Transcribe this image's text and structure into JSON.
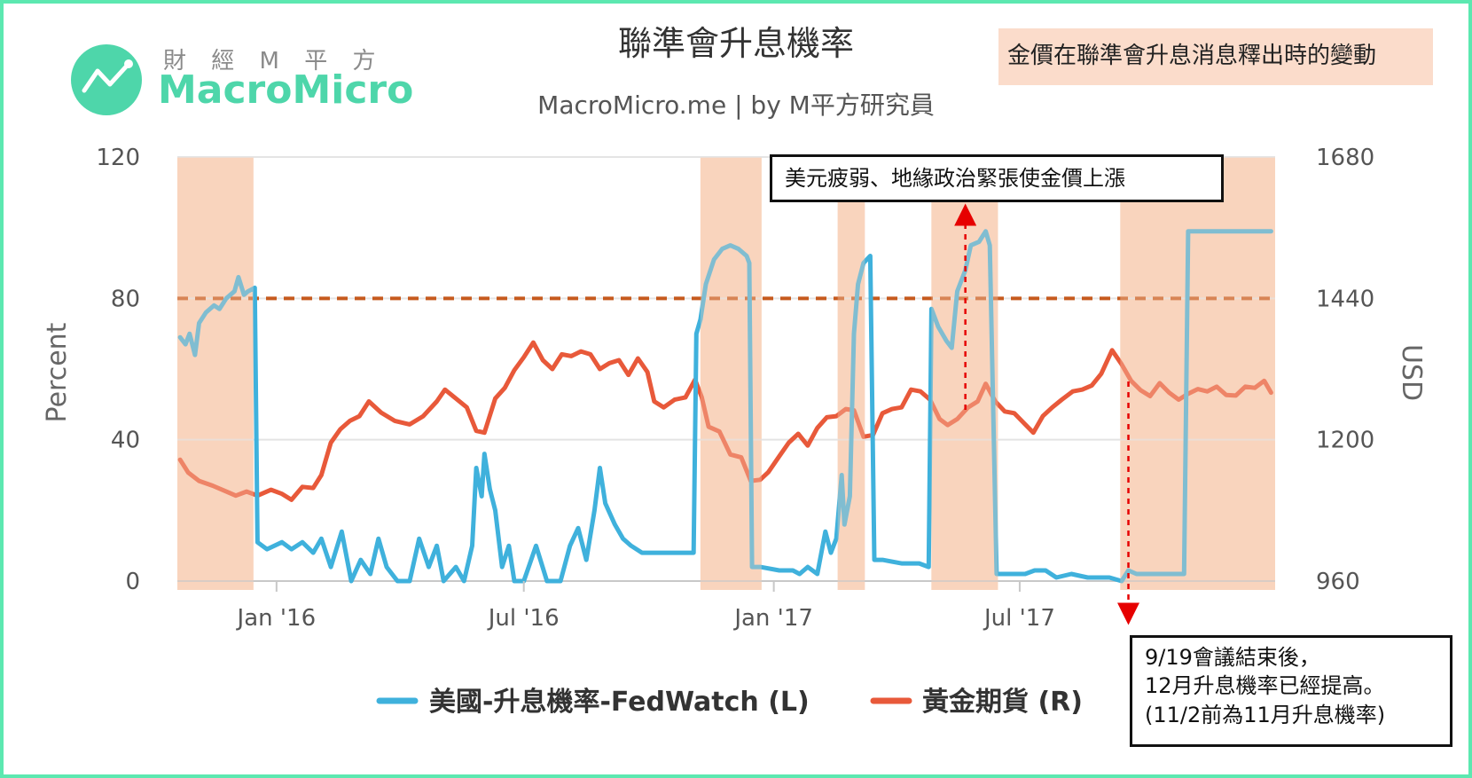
{
  "brand": {
    "name_cn": "財 經 M 平 方",
    "name_en": "MacroMicro",
    "logo_icon": "trend-chart-icon",
    "accent": "#4ed6aa"
  },
  "note_label": "金價在聯準會升息消息釋出時的變動",
  "annotations": {
    "top": "美元疲弱、地緣政治緊張使金價上漲",
    "bottom": [
      "9/19會議結束後，",
      "12月升息機率已經提高。",
      "(11/2前為11月升息機率)"
    ]
  },
  "colors": {
    "fedwatch": "#3fb1dc",
    "gold": "#e8593a",
    "highlight": "#f9d5be",
    "threshold": "#c65a1e",
    "arrow": "#e60000"
  },
  "chart_data": {
    "type": "line",
    "title": "聯準會升息機率",
    "subtitle": "MacroMicro.me | by M平方研究員",
    "xlabel": "",
    "ylabel_left": "Percent",
    "ylabel_right": "USD",
    "ylim_left": [
      0,
      120
    ],
    "ylim_right": [
      960,
      1680
    ],
    "yticks_left": [
      "0",
      "40",
      "80",
      "120"
    ],
    "yticks_right": [
      "960",
      "1200",
      "1440",
      "1680"
    ],
    "xticks": [
      {
        "label": "Jan '16",
        "date": "2016-01-01"
      },
      {
        "label": "Jul '16",
        "date": "2016-07-01"
      },
      {
        "label": "Jan '17",
        "date": "2017-01-01"
      },
      {
        "label": "Jul '17",
        "date": "2017-07-01"
      }
    ],
    "xrange": [
      "2015-10-20",
      "2018-01-05"
    ],
    "threshold_line": {
      "axis": "left",
      "value": 80,
      "style": "dashed"
    },
    "highlight_periods": [
      [
        "2015-10-20",
        "2015-12-15"
      ],
      [
        "2016-11-08",
        "2016-12-23"
      ],
      [
        "2017-02-17",
        "2017-03-09"
      ],
      [
        "2017-04-27",
        "2017-06-15"
      ],
      [
        "2017-09-13",
        "2018-01-05"
      ]
    ],
    "series": [
      {
        "name": "美國-升息機率-FedWatch (L)",
        "axis": "left",
        "points": [
          [
            "2015-10-22",
            69
          ],
          [
            "2015-10-26",
            67
          ],
          [
            "2015-10-29",
            70
          ],
          [
            "2015-11-02",
            64
          ],
          [
            "2015-11-05",
            73
          ],
          [
            "2015-11-10",
            76
          ],
          [
            "2015-11-16",
            78
          ],
          [
            "2015-11-20",
            77
          ],
          [
            "2015-11-25",
            80
          ],
          [
            "2015-12-01",
            82
          ],
          [
            "2015-12-04",
            86
          ],
          [
            "2015-12-08",
            81
          ],
          [
            "2015-12-11",
            82
          ],
          [
            "2015-12-16",
            83
          ],
          [
            "2015-12-18",
            11
          ],
          [
            "2015-12-25",
            9
          ],
          [
            "2016-01-05",
            11
          ],
          [
            "2016-01-12",
            9
          ],
          [
            "2016-01-20",
            11
          ],
          [
            "2016-01-28",
            8
          ],
          [
            "2016-02-03",
            12
          ],
          [
            "2016-02-10",
            4
          ],
          [
            "2016-02-18",
            14
          ],
          [
            "2016-02-25",
            0
          ],
          [
            "2016-03-03",
            6
          ],
          [
            "2016-03-10",
            2
          ],
          [
            "2016-03-16",
            12
          ],
          [
            "2016-03-22",
            4
          ],
          [
            "2016-03-30",
            0
          ],
          [
            "2016-04-08",
            0
          ],
          [
            "2016-04-15",
            12
          ],
          [
            "2016-04-22",
            4
          ],
          [
            "2016-04-28",
            10
          ],
          [
            "2016-05-03",
            0
          ],
          [
            "2016-05-12",
            4
          ],
          [
            "2016-05-18",
            0
          ],
          [
            "2016-05-24",
            10
          ],
          [
            "2016-05-27",
            32
          ],
          [
            "2016-05-31",
            24
          ],
          [
            "2016-06-02",
            36
          ],
          [
            "2016-06-06",
            26
          ],
          [
            "2016-06-10",
            20
          ],
          [
            "2016-06-15",
            4
          ],
          [
            "2016-06-20",
            10
          ],
          [
            "2016-06-24",
            0
          ],
          [
            "2016-07-01",
            0
          ],
          [
            "2016-07-10",
            10
          ],
          [
            "2016-07-18",
            0
          ],
          [
            "2016-07-28",
            0
          ],
          [
            "2016-08-04",
            10
          ],
          [
            "2016-08-10",
            15
          ],
          [
            "2016-08-16",
            6
          ],
          [
            "2016-08-22",
            20
          ],
          [
            "2016-08-26",
            32
          ],
          [
            "2016-08-30",
            22
          ],
          [
            "2016-09-06",
            16
          ],
          [
            "2016-09-12",
            12
          ],
          [
            "2016-09-18",
            10
          ],
          [
            "2016-09-26",
            8
          ],
          [
            "2016-10-03",
            8
          ],
          [
            "2016-10-12",
            8
          ],
          [
            "2016-10-20",
            8
          ],
          [
            "2016-10-27",
            8
          ],
          [
            "2016-11-03",
            8
          ],
          [
            "2016-11-05",
            70
          ],
          [
            "2016-11-08",
            74
          ],
          [
            "2016-11-12",
            84
          ],
          [
            "2016-11-18",
            91
          ],
          [
            "2016-11-24",
            94
          ],
          [
            "2016-11-30",
            95
          ],
          [
            "2016-12-06",
            94
          ],
          [
            "2016-12-12",
            92
          ],
          [
            "2016-12-14",
            90
          ],
          [
            "2016-12-16",
            4
          ],
          [
            "2016-12-22",
            4
          ],
          [
            "2017-01-05",
            3
          ],
          [
            "2017-01-15",
            3
          ],
          [
            "2017-01-20",
            2
          ],
          [
            "2017-01-26",
            4
          ],
          [
            "2017-02-02",
            2
          ],
          [
            "2017-02-08",
            14
          ],
          [
            "2017-02-12",
            8
          ],
          [
            "2017-02-16",
            12
          ],
          [
            "2017-02-20",
            30
          ],
          [
            "2017-02-22",
            16
          ],
          [
            "2017-02-26",
            24
          ],
          [
            "2017-03-01",
            70
          ],
          [
            "2017-03-04",
            84
          ],
          [
            "2017-03-08",
            90
          ],
          [
            "2017-03-13",
            92
          ],
          [
            "2017-03-16",
            6
          ],
          [
            "2017-03-22",
            6
          ],
          [
            "2017-04-05",
            5
          ],
          [
            "2017-04-18",
            5
          ],
          [
            "2017-04-25",
            4
          ],
          [
            "2017-04-27",
            77
          ],
          [
            "2017-05-02",
            72
          ],
          [
            "2017-05-08",
            68
          ],
          [
            "2017-05-12",
            66
          ],
          [
            "2017-05-16",
            82
          ],
          [
            "2017-05-22",
            88
          ],
          [
            "2017-05-26",
            95
          ],
          [
            "2017-06-01",
            96
          ],
          [
            "2017-06-06",
            99
          ],
          [
            "2017-06-09",
            95
          ],
          [
            "2017-06-14",
            2
          ],
          [
            "2017-06-22",
            2
          ],
          [
            "2017-07-05",
            2
          ],
          [
            "2017-07-12",
            3
          ],
          [
            "2017-07-20",
            3
          ],
          [
            "2017-07-28",
            1
          ],
          [
            "2017-08-08",
            2
          ],
          [
            "2017-08-20",
            1
          ],
          [
            "2017-09-05",
            1
          ],
          [
            "2017-09-14",
            0
          ],
          [
            "2017-09-19",
            3
          ],
          [
            "2017-09-25",
            2
          ],
          [
            "2017-10-10",
            2
          ],
          [
            "2017-10-30",
            2
          ],
          [
            "2017-11-02",
            99
          ],
          [
            "2017-12-15",
            99
          ],
          [
            "2018-01-02",
            99
          ]
        ]
      },
      {
        "name": "黃金期貨 (R)",
        "axis": "right",
        "points": [
          [
            "2015-10-22",
            1166
          ],
          [
            "2015-10-28",
            1144
          ],
          [
            "2015-11-05",
            1130
          ],
          [
            "2015-11-15",
            1122
          ],
          [
            "2015-11-25",
            1112
          ],
          [
            "2015-12-02",
            1105
          ],
          [
            "2015-12-10",
            1112
          ],
          [
            "2015-12-18",
            1105
          ],
          [
            "2015-12-28",
            1115
          ],
          [
            "2016-01-05",
            1108
          ],
          [
            "2016-01-12",
            1098
          ],
          [
            "2016-01-20",
            1120
          ],
          [
            "2016-01-28",
            1118
          ],
          [
            "2016-02-03",
            1140
          ],
          [
            "2016-02-10",
            1195
          ],
          [
            "2016-02-17",
            1218
          ],
          [
            "2016-02-24",
            1232
          ],
          [
            "2016-03-02",
            1240
          ],
          [
            "2016-03-09",
            1265
          ],
          [
            "2016-03-18",
            1246
          ],
          [
            "2016-03-28",
            1232
          ],
          [
            "2016-04-08",
            1226
          ],
          [
            "2016-04-18",
            1240
          ],
          [
            "2016-04-28",
            1265
          ],
          [
            "2016-05-04",
            1285
          ],
          [
            "2016-05-12",
            1270
          ],
          [
            "2016-05-20",
            1255
          ],
          [
            "2016-05-27",
            1215
          ],
          [
            "2016-06-02",
            1212
          ],
          [
            "2016-06-10",
            1270
          ],
          [
            "2016-06-17",
            1288
          ],
          [
            "2016-06-24",
            1318
          ],
          [
            "2016-07-01",
            1340
          ],
          [
            "2016-07-08",
            1365
          ],
          [
            "2016-07-15",
            1335
          ],
          [
            "2016-07-22",
            1320
          ],
          [
            "2016-07-29",
            1345
          ],
          [
            "2016-08-05",
            1342
          ],
          [
            "2016-08-12",
            1350
          ],
          [
            "2016-08-19",
            1345
          ],
          [
            "2016-08-26",
            1320
          ],
          [
            "2016-09-02",
            1330
          ],
          [
            "2016-09-09",
            1335
          ],
          [
            "2016-09-16",
            1310
          ],
          [
            "2016-09-23",
            1338
          ],
          [
            "2016-09-30",
            1315
          ],
          [
            "2016-10-05",
            1265
          ],
          [
            "2016-10-12",
            1255
          ],
          [
            "2016-10-20",
            1268
          ],
          [
            "2016-10-28",
            1272
          ],
          [
            "2016-11-04",
            1302
          ],
          [
            "2016-11-09",
            1272
          ],
          [
            "2016-11-14",
            1222
          ],
          [
            "2016-11-22",
            1214
          ],
          [
            "2016-11-30",
            1175
          ],
          [
            "2016-12-08",
            1170
          ],
          [
            "2016-12-15",
            1130
          ],
          [
            "2016-12-22",
            1132
          ],
          [
            "2016-12-28",
            1145
          ],
          [
            "2017-01-05",
            1172
          ],
          [
            "2017-01-12",
            1195
          ],
          [
            "2017-01-19",
            1210
          ],
          [
            "2017-01-26",
            1190
          ],
          [
            "2017-02-02",
            1220
          ],
          [
            "2017-02-09",
            1238
          ],
          [
            "2017-02-16",
            1240
          ],
          [
            "2017-02-23",
            1252
          ],
          [
            "2017-03-01",
            1250
          ],
          [
            "2017-03-08",
            1205
          ],
          [
            "2017-03-15",
            1208
          ],
          [
            "2017-03-22",
            1245
          ],
          [
            "2017-03-29",
            1252
          ],
          [
            "2017-04-05",
            1255
          ],
          [
            "2017-04-12",
            1285
          ],
          [
            "2017-04-19",
            1282
          ],
          [
            "2017-04-26",
            1268
          ],
          [
            "2017-05-03",
            1235
          ],
          [
            "2017-05-09",
            1225
          ],
          [
            "2017-05-16",
            1235
          ],
          [
            "2017-05-24",
            1255
          ],
          [
            "2017-05-31",
            1265
          ],
          [
            "2017-06-06",
            1295
          ],
          [
            "2017-06-13",
            1265
          ],
          [
            "2017-06-20",
            1248
          ],
          [
            "2017-06-27",
            1245
          ],
          [
            "2017-07-05",
            1226
          ],
          [
            "2017-07-11",
            1212
          ],
          [
            "2017-07-18",
            1240
          ],
          [
            "2017-07-25",
            1255
          ],
          [
            "2017-08-01",
            1268
          ],
          [
            "2017-08-09",
            1282
          ],
          [
            "2017-08-16",
            1285
          ],
          [
            "2017-08-23",
            1292
          ],
          [
            "2017-08-30",
            1312
          ],
          [
            "2017-09-07",
            1352
          ],
          [
            "2017-09-14",
            1328
          ],
          [
            "2017-09-21",
            1300
          ],
          [
            "2017-09-28",
            1284
          ],
          [
            "2017-10-05",
            1274
          ],
          [
            "2017-10-12",
            1296
          ],
          [
            "2017-10-19",
            1280
          ],
          [
            "2017-10-26",
            1268
          ],
          [
            "2017-11-02",
            1278
          ],
          [
            "2017-11-09",
            1286
          ],
          [
            "2017-11-16",
            1282
          ],
          [
            "2017-11-23",
            1290
          ],
          [
            "2017-11-30",
            1276
          ],
          [
            "2017-12-07",
            1275
          ],
          [
            "2017-12-14",
            1290
          ],
          [
            "2017-12-21",
            1288
          ],
          [
            "2017-12-28",
            1300
          ],
          [
            "2018-01-02",
            1280
          ]
        ]
      }
    ],
    "legend_position": "bottom"
  }
}
